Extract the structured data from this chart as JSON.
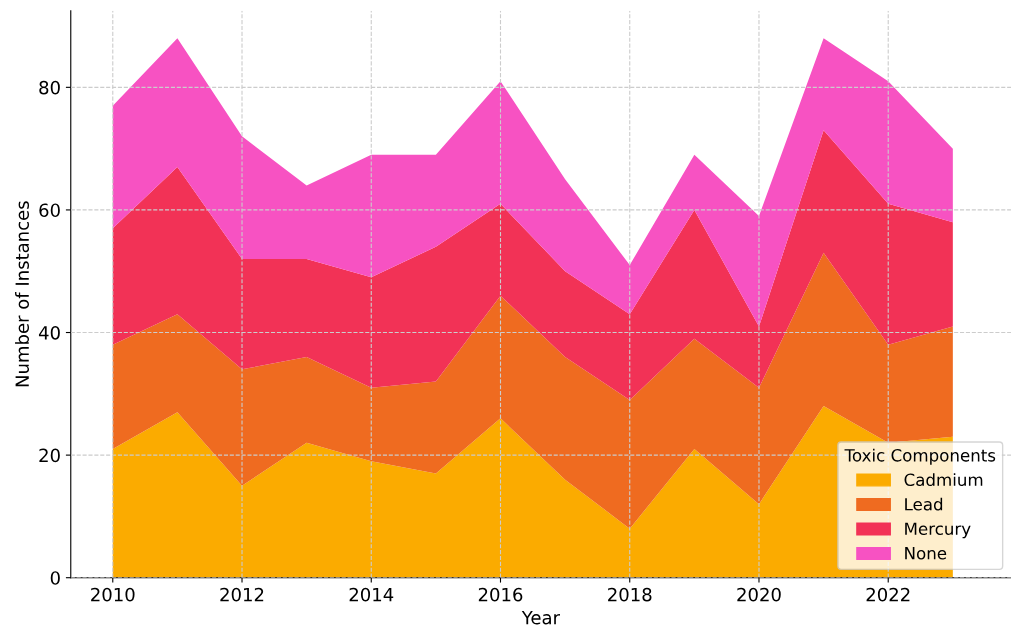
{
  "chart_data": {
    "type": "area",
    "stacked": true,
    "xlabel": "Year",
    "ylabel": "Number of Instances",
    "legend_title": "Toxic Components",
    "legend": "bottom right",
    "grid": true,
    "x": [
      2010,
      2011,
      2012,
      2013,
      2014,
      2015,
      2016,
      2017,
      2018,
      2019,
      2020,
      2021,
      2022,
      2023
    ],
    "xlim": [
      2009.35,
      2023.9
    ],
    "xticks": [
      2010,
      2012,
      2014,
      2016,
      2018,
      2020,
      2022
    ],
    "ylim": [
      0,
      92.5
    ],
    "yticks": [
      0,
      20,
      40,
      60,
      80
    ],
    "series": [
      {
        "name": "Cadmium",
        "color": "#fbab00",
        "values": [
          21,
          27,
          15,
          22,
          19,
          17,
          26,
          16,
          8,
          21,
          12,
          28,
          22,
          23
        ]
      },
      {
        "name": "Lead",
        "color": "#ef6b20",
        "values": [
          17,
          16,
          19,
          14,
          12,
          15,
          20,
          20,
          21,
          18,
          19,
          25,
          16,
          18
        ]
      },
      {
        "name": "Mercury",
        "color": "#f23256",
        "values": [
          19,
          24,
          18,
          16,
          18,
          22,
          15,
          14,
          14,
          21,
          10,
          20,
          23,
          17
        ]
      },
      {
        "name": "None",
        "color": "#f752c2",
        "values": [
          20,
          21,
          20,
          12,
          20,
          15,
          20,
          15,
          8,
          9,
          18,
          15,
          20,
          12
        ]
      }
    ]
  }
}
